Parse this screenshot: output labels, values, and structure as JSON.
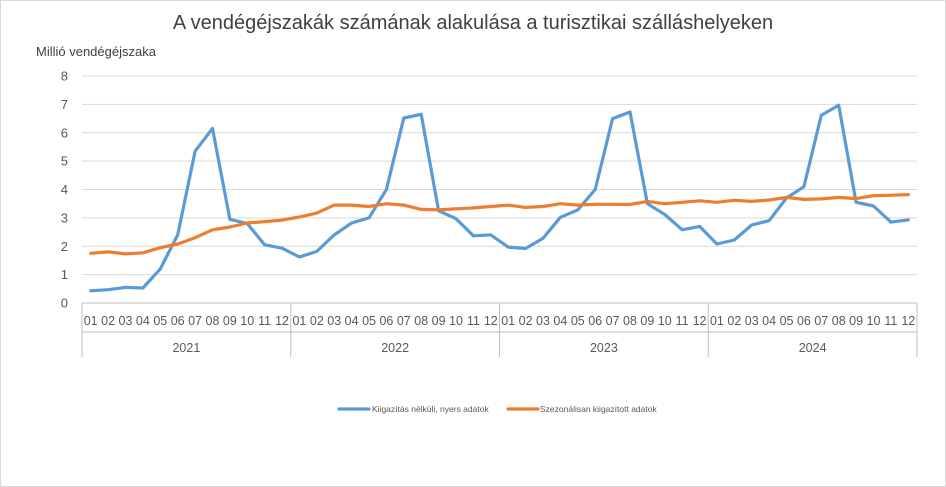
{
  "chart_data": {
    "type": "line",
    "title": "A vendégéjszakák számának alakulása a turisztikai szálláshelyeken",
    "ylabel": "Millió vendégéjszaka",
    "ylim": [
      0,
      8
    ],
    "yticks": [
      "0",
      "1",
      "2",
      "3",
      "4",
      "5",
      "6",
      "7",
      "8"
    ],
    "grid": true,
    "legend_position": "bottom",
    "years": [
      "2021",
      "2022",
      "2023",
      "2024"
    ],
    "months": [
      "01",
      "02",
      "03",
      "04",
      "05",
      "06",
      "07",
      "08",
      "09",
      "10",
      "11",
      "12"
    ],
    "series": [
      {
        "name": "Kiigazítás nélküli, nyers adatok",
        "color": "#5b9bd5",
        "values": [
          0.43,
          0.47,
          0.55,
          0.53,
          1.2,
          2.4,
          5.35,
          6.15,
          2.95,
          2.8,
          2.05,
          1.93,
          1.62,
          1.82,
          2.4,
          2.82,
          3.0,
          4.0,
          6.52,
          6.65,
          3.25,
          2.97,
          2.37,
          2.4,
          1.97,
          1.92,
          2.28,
          3.02,
          3.28,
          4.0,
          6.5,
          6.73,
          3.5,
          3.12,
          2.58,
          2.7,
          2.08,
          2.22,
          2.75,
          2.9,
          3.7,
          4.1,
          6.62,
          6.97,
          3.55,
          3.42,
          2.85,
          2.93
        ]
      },
      {
        "name": "Szezonálisan kiigazított adatok",
        "color": "#ed7d31",
        "values": [
          1.75,
          1.8,
          1.73,
          1.77,
          1.95,
          2.08,
          2.3,
          2.58,
          2.68,
          2.82,
          2.87,
          2.92,
          3.03,
          3.17,
          3.45,
          3.45,
          3.4,
          3.5,
          3.45,
          3.3,
          3.28,
          3.32,
          3.35,
          3.4,
          3.45,
          3.37,
          3.4,
          3.5,
          3.45,
          3.48,
          3.48,
          3.47,
          3.58,
          3.5,
          3.55,
          3.6,
          3.55,
          3.62,
          3.58,
          3.63,
          3.72,
          3.65,
          3.67,
          3.72,
          3.68,
          3.78,
          3.8,
          3.82
        ]
      }
    ]
  }
}
